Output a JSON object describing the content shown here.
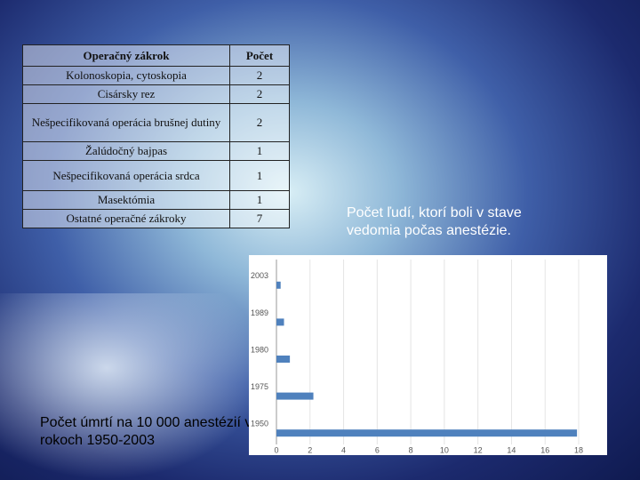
{
  "table": {
    "header": [
      "Operačný zákrok",
      "Počet"
    ],
    "rows": [
      [
        "Kolonoskopia, cytoskopia",
        "2"
      ],
      [
        "Cisársky rez",
        "2"
      ],
      [
        "Nešpecifikovaná operácia brušnej dutiny",
        "2"
      ],
      [
        "Žalúdočný bajpas",
        "1"
      ],
      [
        "Nešpecifikovaná operácia srdca",
        "1"
      ],
      [
        "Masektómia",
        "1"
      ],
      [
        "Ostatné operačné zákroky",
        "7"
      ]
    ]
  },
  "captions": {
    "awareness": "Počet ľudí, ktorí boli v stave vedomia počas anestézie.",
    "deaths": "Počet úmrtí na 10 000 anestézií v rokoch 1950-2003"
  },
  "chart_data": {
    "type": "hbar",
    "categories": [
      "2003",
      "1989",
      "1980",
      "1975",
      "1950"
    ],
    "values": [
      0.25,
      0.45,
      0.8,
      2.2,
      17.9
    ],
    "color": "#4f81bd",
    "xlim": [
      0,
      18
    ],
    "xticks": [
      0,
      2,
      4,
      6,
      8,
      10,
      12,
      14,
      16,
      18
    ],
    "grid": true
  }
}
